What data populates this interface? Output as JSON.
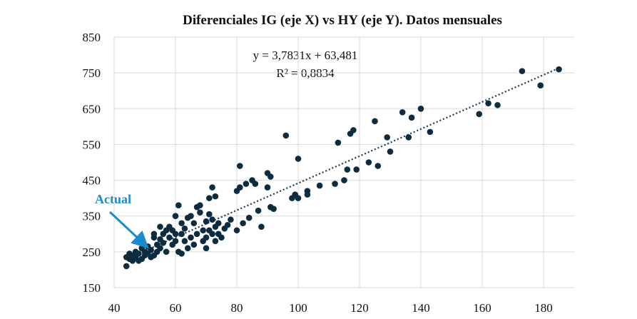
{
  "chart_data": {
    "type": "scatter",
    "title": "Diferenciales IG (eje X) vs HY (eje Y). Datos mensuales",
    "equation": "y = 3,7831x  + 63,481",
    "r_squared": "R² = 0,8834",
    "trendline": {
      "slope": 3.7831,
      "intercept": 63.481
    },
    "annotation": "Actual",
    "color": "#0e2c40",
    "annotation_color": "#1a8ccc",
    "trend_color": "#1a3a52",
    "grid": true,
    "xlim": [
      40,
      190
    ],
    "ylim": [
      150,
      850
    ],
    "xticks": [
      40,
      60,
      80,
      100,
      120,
      140,
      160,
      180
    ],
    "yticks": [
      150,
      250,
      350,
      450,
      550,
      650,
      750,
      850
    ],
    "x": [
      44,
      44,
      45,
      46,
      47,
      48,
      48,
      49,
      50,
      50,
      51,
      52,
      52,
      53,
      53,
      54,
      54,
      55,
      55,
      55,
      56,
      56,
      57,
      57,
      58,
      58,
      59,
      59,
      60,
      60,
      60,
      61,
      61,
      62,
      62,
      62,
      63,
      63,
      64,
      64,
      65,
      65,
      66,
      66,
      67,
      67,
      68,
      68,
      69,
      69,
      70,
      70,
      70,
      71,
      71,
      71,
      72,
      72,
      72,
      73,
      73,
      73,
      74,
      74,
      75,
      76,
      77,
      78,
      80,
      80,
      81,
      81,
      82,
      83,
      84,
      85,
      86,
      87,
      88,
      90,
      90,
      91,
      91,
      92,
      96,
      98,
      99,
      100,
      100,
      103,
      103,
      107,
      112,
      113,
      115,
      116,
      117,
      118,
      119,
      123,
      125,
      126,
      129,
      130,
      134,
      136,
      137,
      140,
      143,
      159,
      162,
      165,
      173,
      179,
      185,
      46,
      49,
      51,
      53,
      47,
      45
    ],
    "values": [
      235,
      210,
      230,
      240,
      235,
      245,
      225,
      260,
      250,
      240,
      265,
      255,
      235,
      290,
      300,
      270,
      250,
      320,
      285,
      260,
      300,
      275,
      310,
      250,
      290,
      320,
      270,
      310,
      350,
      300,
      280,
      380,
      250,
      300,
      330,
      245,
      280,
      315,
      345,
      260,
      290,
      350,
      270,
      330,
      375,
      300,
      360,
      380,
      310,
      280,
      335,
      290,
      260,
      400,
      355,
      310,
      430,
      340,
      300,
      320,
      280,
      405,
      330,
      300,
      290,
      315,
      325,
      340,
      310,
      420,
      430,
      490,
      330,
      440,
      345,
      450,
      440,
      365,
      320,
      430,
      470,
      460,
      375,
      370,
      575,
      400,
      410,
      510,
      400,
      420,
      410,
      435,
      440,
      555,
      450,
      480,
      580,
      590,
      480,
      500,
      615,
      490,
      570,
      530,
      640,
      570,
      625,
      650,
      585,
      635,
      665,
      660,
      755,
      715,
      760,
      225,
      230,
      245,
      240,
      250,
      245
    ]
  }
}
